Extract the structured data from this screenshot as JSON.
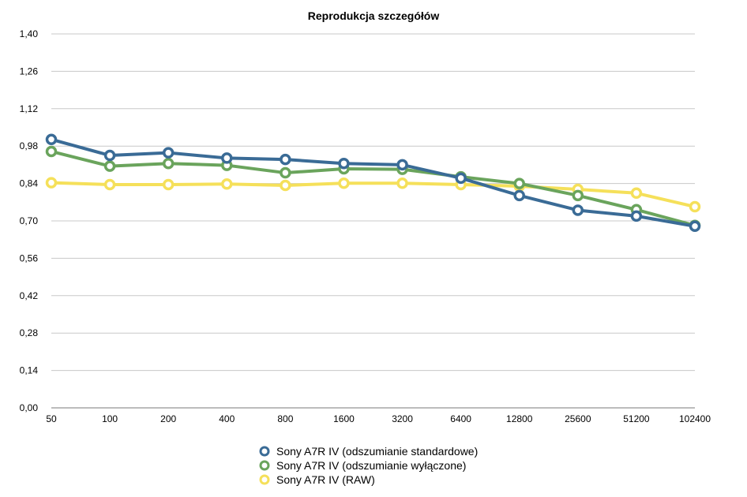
{
  "chart_data": {
    "type": "line",
    "title": "Reprodukcja szczegółów",
    "xlabel": "",
    "ylabel": "",
    "categories": [
      "50",
      "100",
      "200",
      "400",
      "800",
      "1600",
      "3200",
      "6400",
      "12800",
      "25600",
      "51200",
      "102400"
    ],
    "ylim": [
      0,
      1.4
    ],
    "yticks": [
      "0,00",
      "0,14",
      "0,28",
      "0,42",
      "0,56",
      "0,70",
      "0,84",
      "0,98",
      "1,12",
      "1,26",
      "1,40"
    ],
    "grid": true,
    "legend_position": "bottom",
    "series": [
      {
        "name": "Sony A7R IV (odszumianie standardowe)",
        "color": "#3a6b96",
        "values": [
          1.005,
          0.945,
          0.955,
          0.935,
          0.93,
          0.915,
          0.91,
          0.86,
          0.795,
          0.74,
          0.718,
          0.68
        ]
      },
      {
        "name": "Sony A7R IV (odszumianie wyłączone)",
        "color": "#6aa45c",
        "values": [
          0.96,
          0.905,
          0.915,
          0.908,
          0.88,
          0.895,
          0.893,
          0.865,
          0.84,
          0.795,
          0.742,
          0.683
        ]
      },
      {
        "name": "Sony A7R IV (RAW)",
        "color": "#f5e05a",
        "values": [
          0.843,
          0.836,
          0.836,
          0.838,
          0.833,
          0.841,
          0.841,
          0.836,
          0.83,
          0.818,
          0.804,
          0.753
        ]
      }
    ]
  }
}
